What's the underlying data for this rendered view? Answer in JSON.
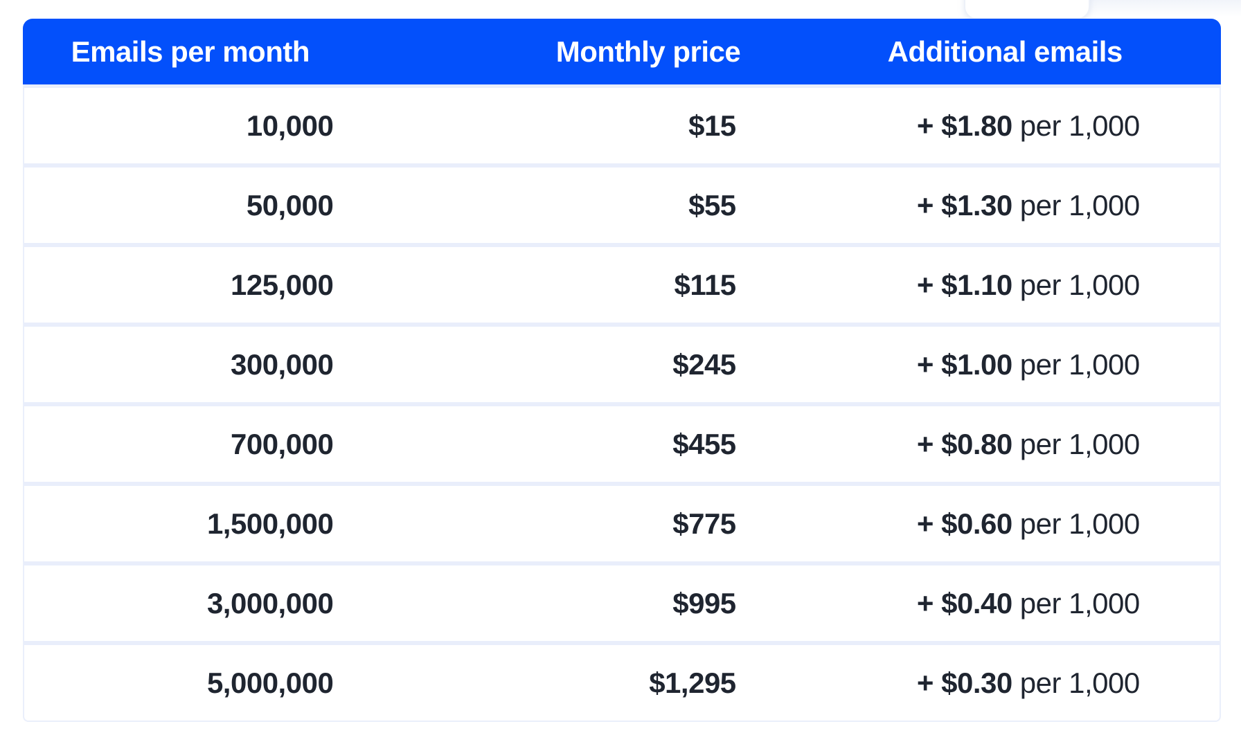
{
  "page": {
    "background_color": "#ffffff"
  },
  "table": {
    "colors": {
      "header_bg": "#0350fb",
      "header_text": "#ffffff",
      "row_bg": "#ffffff",
      "row_text": "#1f2530",
      "divider": "#e9eefb"
    },
    "headers": {
      "emails": "Emails per month",
      "price": "Monthly price",
      "additional": "Additional emails"
    },
    "rows": [
      {
        "emails": "10,000",
        "price": "$15",
        "overage_rate": "+ $1.80",
        "overage_unit": "per 1,000"
      },
      {
        "emails": "50,000",
        "price": "$55",
        "overage_rate": "+ $1.30",
        "overage_unit": "per 1,000"
      },
      {
        "emails": "125,000",
        "price": "$115",
        "overage_rate": "+ $1.10",
        "overage_unit": "per 1,000"
      },
      {
        "emails": "300,000",
        "price": "$245",
        "overage_rate": "+ $1.00",
        "overage_unit": "per 1,000"
      },
      {
        "emails": "700,000",
        "price": "$455",
        "overage_rate": "+ $0.80",
        "overage_unit": "per 1,000"
      },
      {
        "emails": "1,500,000",
        "price": "$775",
        "overage_rate": "+ $0.60",
        "overage_unit": "per 1,000"
      },
      {
        "emails": "3,000,000",
        "price": "$995",
        "overage_rate": "+ $0.40",
        "overage_unit": "per 1,000"
      },
      {
        "emails": "5,000,000",
        "price": "$1,295",
        "overage_rate": "+ $0.30",
        "overage_unit": "per 1,000"
      }
    ]
  }
}
